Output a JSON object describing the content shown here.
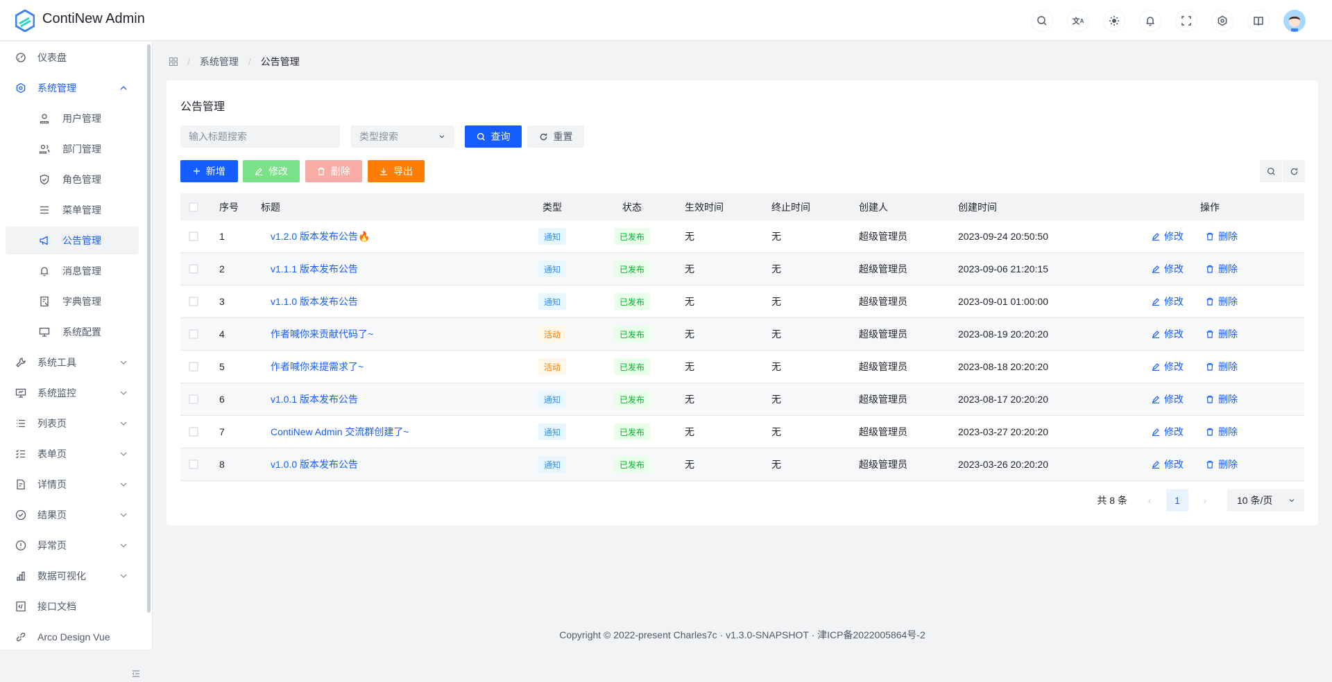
{
  "header": {
    "title": "ContiNew Admin",
    "icons": [
      "search-icon",
      "translate-icon",
      "sun-icon",
      "bell-icon",
      "fullscreen-icon",
      "settings-icon",
      "book-icon"
    ]
  },
  "sidebar": {
    "items": [
      {
        "label": "仪表盘",
        "icon": "dashboard-icon"
      },
      {
        "label": "系统管理",
        "icon": "gear-icon",
        "expanded": true
      },
      {
        "label": "用户管理",
        "icon": "user-icon",
        "sub": true
      },
      {
        "label": "部门管理",
        "icon": "users-icon",
        "sub": true
      },
      {
        "label": "角色管理",
        "icon": "shield-icon",
        "sub": true
      },
      {
        "label": "菜单管理",
        "icon": "menu-icon",
        "sub": true
      },
      {
        "label": "公告管理",
        "icon": "megaphone-icon",
        "sub": true,
        "active": true
      },
      {
        "label": "消息管理",
        "icon": "bell-icon",
        "sub": true
      },
      {
        "label": "字典管理",
        "icon": "dictionary-icon",
        "sub": true
      },
      {
        "label": "系统配置",
        "icon": "desktop-icon",
        "sub": true
      },
      {
        "label": "系统工具",
        "icon": "wrench-icon",
        "chevron": true
      },
      {
        "label": "系统监控",
        "icon": "monitor-icon",
        "chevron": true
      },
      {
        "label": "列表页",
        "icon": "list-icon",
        "chevron": true
      },
      {
        "label": "表单页",
        "icon": "checklist-icon",
        "chevron": true
      },
      {
        "label": "详情页",
        "icon": "file-icon",
        "chevron": true
      },
      {
        "label": "结果页",
        "icon": "check-circle-icon",
        "chevron": true
      },
      {
        "label": "异常页",
        "icon": "exclamation-circle-icon",
        "chevron": true
      },
      {
        "label": "数据可视化",
        "icon": "bar-chart-icon",
        "chevron": true
      },
      {
        "label": "接口文档",
        "icon": "code-icon"
      },
      {
        "label": "Arco Design Vue",
        "icon": "link-icon"
      }
    ]
  },
  "breadcrumb": {
    "items": [
      "系统管理",
      "公告管理"
    ]
  },
  "page": {
    "title": "公告管理",
    "search": {
      "title_placeholder": "输入标题搜索",
      "type_placeholder": "类型搜索",
      "query": "查询",
      "reset": "重置"
    },
    "toolbar": {
      "add": "新增",
      "edit": "修改",
      "delete": "删除",
      "export": "导出"
    }
  },
  "table": {
    "columns": [
      "序号",
      "标题",
      "类型",
      "状态",
      "生效时间",
      "终止时间",
      "创建人",
      "创建时间",
      "操作"
    ],
    "actions": {
      "edit": "修改",
      "delete": "删除"
    },
    "rows": [
      {
        "no": "1",
        "title": "v1.2.0 版本发布公告🔥",
        "type": "通知",
        "status": "已发布",
        "start": "无",
        "end": "无",
        "creator": "超级管理员",
        "created": "2023-09-24 20:50:50"
      },
      {
        "no": "2",
        "title": "v1.1.1 版本发布公告",
        "type": "通知",
        "status": "已发布",
        "start": "无",
        "end": "无",
        "creator": "超级管理员",
        "created": "2023-09-06 21:20:15"
      },
      {
        "no": "3",
        "title": "v1.1.0 版本发布公告",
        "type": "通知",
        "status": "已发布",
        "start": "无",
        "end": "无",
        "creator": "超级管理员",
        "created": "2023-09-01 01:00:00"
      },
      {
        "no": "4",
        "title": "作者喊你来贡献代码了~",
        "type": "活动",
        "status": "已发布",
        "start": "无",
        "end": "无",
        "creator": "超级管理员",
        "created": "2023-08-19 20:20:20"
      },
      {
        "no": "5",
        "title": "作者喊你来提需求了~",
        "type": "活动",
        "status": "已发布",
        "start": "无",
        "end": "无",
        "creator": "超级管理员",
        "created": "2023-08-18 20:20:20"
      },
      {
        "no": "6",
        "title": "v1.0.1 版本发布公告",
        "type": "通知",
        "status": "已发布",
        "start": "无",
        "end": "无",
        "creator": "超级管理员",
        "created": "2023-08-17 20:20:20"
      },
      {
        "no": "7",
        "title": "ContiNew Admin 交流群创建了~",
        "type": "通知",
        "status": "已发布",
        "start": "无",
        "end": "无",
        "creator": "超级管理员",
        "created": "2023-03-27 20:20:20"
      },
      {
        "no": "8",
        "title": "v1.0.0 版本发布公告",
        "type": "通知",
        "status": "已发布",
        "start": "无",
        "end": "无",
        "creator": "超级管理员",
        "created": "2023-03-26 20:20:20"
      }
    ]
  },
  "pagination": {
    "total": "共 8 条",
    "current": "1",
    "page_size": "10 条/页"
  },
  "footer": {
    "text": "Copyright © 2022-present Charles7c · v1.3.0-SNAPSHOT · 津ICP备2022005864号-2"
  },
  "colors": {
    "primary": "#165dff",
    "notice_bg": "#e8f7ff",
    "notice_fg": "#3491fa",
    "activity_bg": "#fff7e8",
    "activity_fg": "#ff7d00",
    "published_bg": "#e8ffea",
    "published_fg": "#00b42a"
  }
}
